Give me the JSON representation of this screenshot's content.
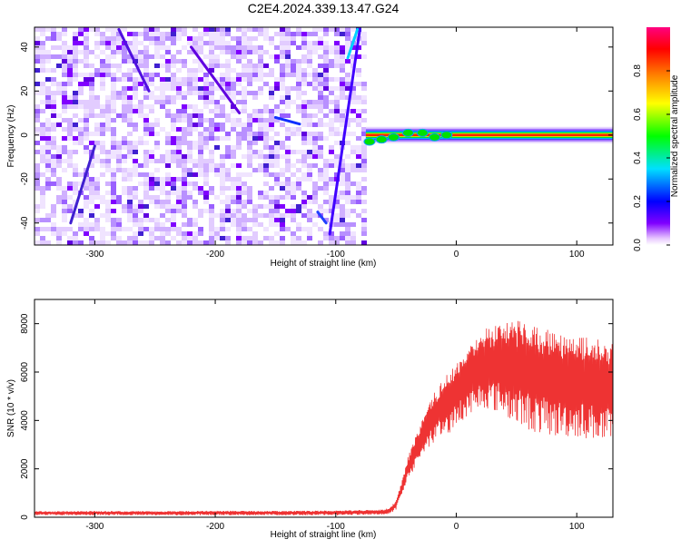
{
  "page": {
    "title": "C2E4.2024.339.13.47.G24"
  },
  "chart_data": [
    {
      "type": "heatmap",
      "xlabel": "Height of straight line (km)",
      "ylabel": "Frequency (Hz)",
      "xlim": [
        -350,
        130
      ],
      "ylim": [
        -50,
        49
      ],
      "xticks": [
        -300,
        -200,
        -100,
        0,
        100
      ],
      "yticks": [
        -40,
        -20,
        0,
        20,
        40
      ],
      "noise_region_x": [
        -350,
        -75
      ],
      "carrier_region_x": [
        -75,
        130
      ],
      "carrier_frequency": 0,
      "colorbar": {
        "label": "Normalized spectral amplitude",
        "range": [
          0,
          1
        ],
        "ticks": [
          0.0,
          0.2,
          0.4,
          0.6,
          0.8
        ],
        "colors": [
          "#ffffff",
          "#8000ff",
          "#0000ff",
          "#00e0ff",
          "#00ff00",
          "#ffff00",
          "#ff8000",
          "#ff0000",
          "#ff0080"
        ]
      }
    },
    {
      "type": "line",
      "xlabel": "Height of straight line (km)",
      "ylabel": "SNR (10 * v/v)",
      "xlim": [
        -350,
        130
      ],
      "ylim": [
        0,
        9000
      ],
      "xticks": [
        -300,
        -200,
        -100,
        0,
        100
      ],
      "yticks": [
        0,
        2000,
        4000,
        6000,
        8000
      ],
      "color": "#ee3333",
      "series": [
        {
          "x": [
            -350,
            -300,
            -250,
            -200,
            -150,
            -100,
            -75,
            -60,
            -55,
            -50,
            -45,
            -40,
            -35,
            -30,
            -25,
            -20,
            -15,
            -10,
            -5,
            0,
            5,
            10,
            15,
            20,
            25,
            30,
            35,
            40,
            45,
            50,
            55,
            60,
            65,
            70,
            75,
            80,
            85,
            90,
            95,
            100,
            105,
            110,
            115,
            120,
            125,
            130
          ],
          "y": [
            250,
            260,
            250,
            270,
            260,
            280,
            300,
            320,
            400,
            700,
            1500,
            2500,
            3200,
            3800,
            4500,
            5000,
            5400,
            5800,
            6000,
            6400,
            6700,
            7000,
            7300,
            7600,
            7800,
            7900,
            8000,
            8100,
            8050,
            8100,
            8150,
            8100,
            8000,
            7900,
            7800,
            7700,
            7650,
            7600,
            7550,
            7500,
            7450,
            7450,
            7400,
            7350,
            7300,
            7300
          ],
          "y_low": [
            80,
            80,
            80,
            80,
            80,
            80,
            100,
            100,
            150,
            300,
            900,
            1500,
            2000,
            2400,
            2800,
            3000,
            3200,
            3400,
            3500,
            3800,
            4000,
            4200,
            4400,
            4500,
            4500,
            4400,
            4300,
            4200,
            4000,
            3800,
            3700,
            3600,
            3500,
            3400,
            3400,
            3300,
            3300,
            3300,
            3300,
            3300,
            3300,
            3200,
            3200,
            3100,
            3000,
            3000
          ]
        }
      ]
    }
  ]
}
